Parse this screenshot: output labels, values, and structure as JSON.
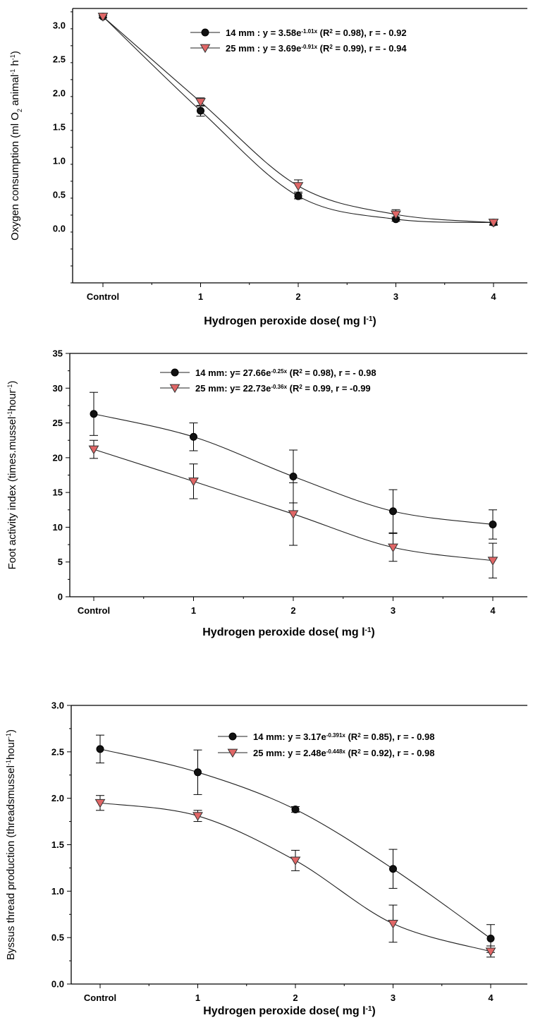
{
  "chart_data": [
    {
      "type": "line",
      "xlabel": "Hydrogen peroxide dose( mg l-1)",
      "ylabel": "Oxygen consumption (ml O2 animal-1 h-1)",
      "categories": [
        "Control",
        "1",
        "2",
        "3",
        "4"
      ],
      "ylim": [
        -0.8,
        3.25
      ],
      "yticks": [
        0.0,
        0.5,
        1.0,
        1.5,
        2.0,
        2.5,
        3.0
      ],
      "ytick_labels": [
        "0.0",
        "0.5",
        "1.0",
        "1.5",
        "2.0",
        "2.5",
        "3.0"
      ],
      "grid": false,
      "legend_position": "top-right",
      "series": [
        {
          "name": "14 mm",
          "equation": "14 mm : y = 3.58e-1.01x (R2 = 0.98), r = - 0.92",
          "marker": "circle",
          "color": "#111111",
          "values": [
            3.13,
            1.74,
            0.48,
            0.14,
            0.09
          ],
          "errors": [
            0.02,
            0.08,
            0.04,
            0.03,
            0.03
          ]
        },
        {
          "name": "25 mm",
          "equation": "25 mm : y = 3.69e-0.91x (R2 = 0.99), r = - 0.94",
          "marker": "triangle-down",
          "color": "#e06666",
          "values": [
            3.13,
            1.87,
            0.63,
            0.21,
            0.09
          ],
          "errors": [
            0.02,
            0.06,
            0.09,
            0.07,
            0.04
          ]
        }
      ]
    },
    {
      "type": "line",
      "xlabel": "Hydrogen peroxide dose( mg l-1)",
      "ylabel": "Foot activity index (times.mussel-1hour-1)",
      "categories": [
        "Control",
        "1",
        "2",
        "3",
        "4"
      ],
      "ylim": [
        0,
        35
      ],
      "yticks": [
        0,
        5,
        10,
        15,
        20,
        25,
        30,
        35
      ],
      "ytick_labels": [
        "0",
        "5",
        "10",
        "15",
        "20",
        "25",
        "30",
        "35"
      ],
      "grid": false,
      "legend_position": "top-right",
      "series": [
        {
          "name": "14 mm",
          "equation": "14 mm: y= 27.66e-0.25x (R2 = 0.98), r = - 0.98",
          "marker": "circle",
          "color": "#111111",
          "values": [
            26.3,
            23.0,
            17.3,
            12.3,
            10.4
          ],
          "errors": [
            3.1,
            2.0,
            3.8,
            3.1,
            2.1
          ]
        },
        {
          "name": "25 mm",
          "equation": "25 mm: y= 22.73e-0.36x (R2 = 0.99, r = -0.99",
          "marker": "triangle-down",
          "color": "#e06666",
          "values": [
            21.2,
            16.6,
            11.9,
            7.1,
            5.2
          ],
          "errors": [
            1.3,
            2.5,
            4.5,
            2.0,
            2.5
          ]
        }
      ]
    },
    {
      "type": "line",
      "xlabel": "Hydrogen peroxide dose( mg l-1)",
      "ylabel": "Byssus thread production (threadsmussel-1hour-1)",
      "categories": [
        "Control",
        "1",
        "2",
        "3",
        "4"
      ],
      "ylim": [
        0,
        3.0
      ],
      "yticks": [
        0.0,
        0.5,
        1.0,
        1.5,
        2.0,
        2.5,
        3.0
      ],
      "ytick_labels": [
        "0.0",
        "0.5",
        "1.0",
        "1.5",
        "2.0",
        "2.5",
        "3.0"
      ],
      "grid": false,
      "legend_position": "top-right",
      "series": [
        {
          "name": "14 mm",
          "equation": "14 mm: y = 3.17e-0.391x (R2 = 0.85), r = - 0.98",
          "marker": "circle",
          "color": "#111111",
          "values": [
            2.53,
            2.28,
            1.88,
            1.24,
            0.49
          ],
          "errors": [
            0.15,
            0.24,
            0.03,
            0.21,
            0.15
          ]
        },
        {
          "name": "25 mm",
          "equation": "25 mm: y = 2.48e-0.448x (R2 = 0.92), r = - 0.98",
          "marker": "triangle-down",
          "color": "#e06666",
          "values": [
            1.95,
            1.81,
            1.33,
            0.65,
            0.35
          ],
          "errors": [
            0.08,
            0.06,
            0.11,
            0.2,
            0.06
          ]
        }
      ]
    }
  ]
}
